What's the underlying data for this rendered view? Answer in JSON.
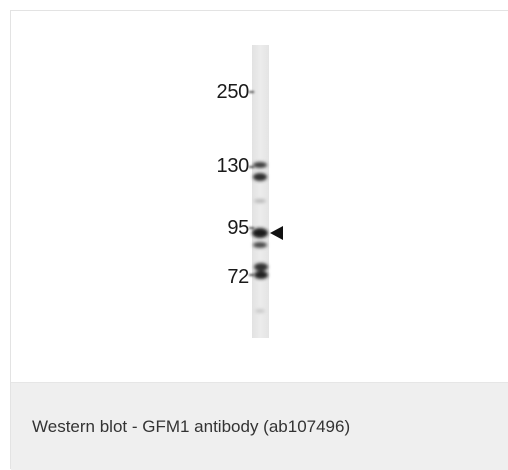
{
  "figure": {
    "markers": [
      {
        "label": "250"
      },
      {
        "label": "130"
      },
      {
        "label": "95"
      },
      {
        "label": "72"
      }
    ],
    "target_arrow": "left-pointing-triangle-icon"
  },
  "caption": {
    "text": "Western blot - GFM1 antibody (ab107496)"
  },
  "colors": {
    "caption_background": "#efefef",
    "border": "#e3e3e3",
    "text": "#333333"
  }
}
